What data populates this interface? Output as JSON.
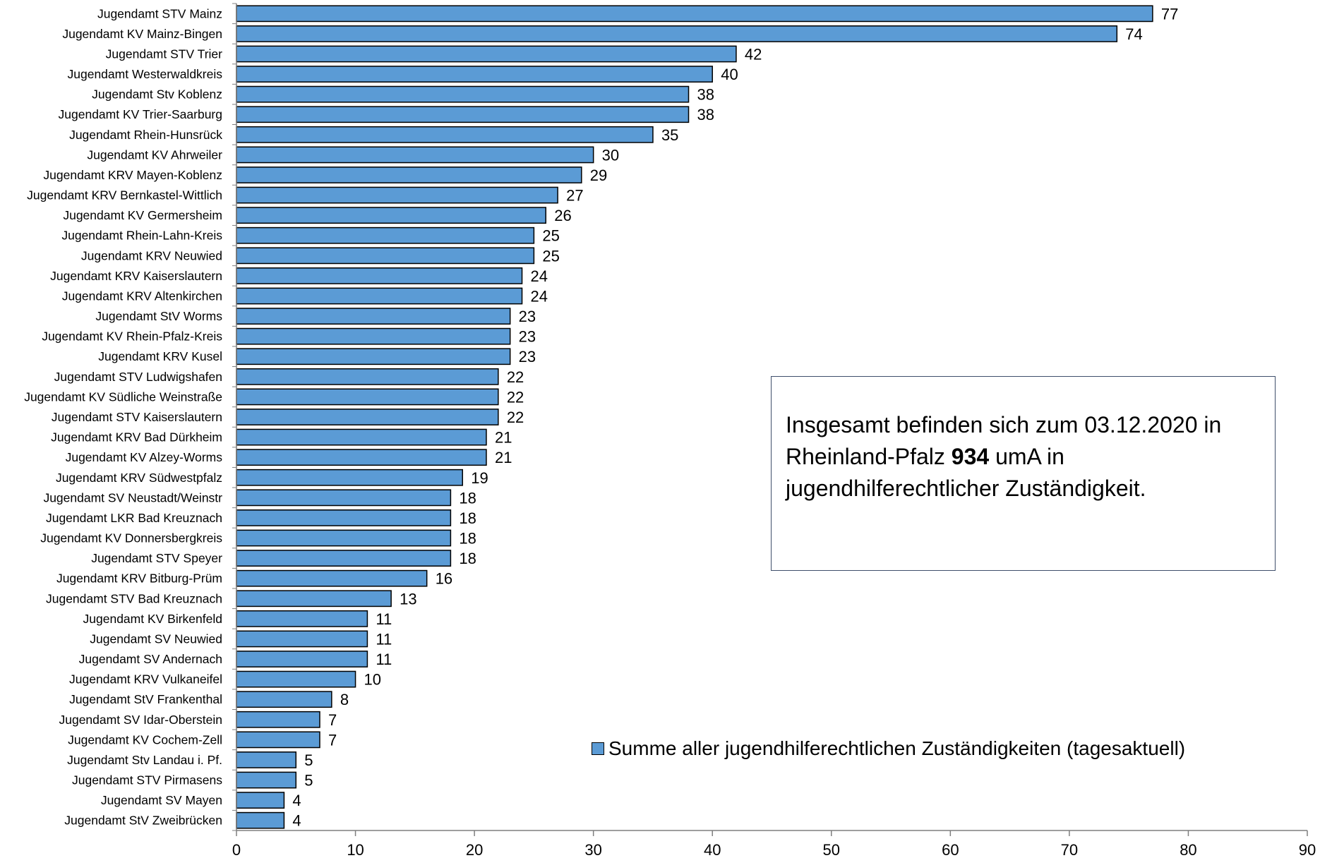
{
  "chart_data": {
    "type": "bar",
    "orientation": "horizontal",
    "categories": [
      "Jugendamt STV Mainz",
      "Jugendamt KV Mainz-Bingen",
      "Jugendamt STV Trier",
      "Jugendamt Westerwaldkreis",
      "Jugendamt Stv Koblenz",
      "Jugendamt KV Trier-Saarburg",
      "Jugendamt Rhein-Hunsrück",
      "Jugendamt KV Ahrweiler",
      "Jugendamt KRV Mayen-Koblenz",
      "Jugendamt KRV Bernkastel-Wittlich",
      "Jugendamt KV Germersheim",
      "Jugendamt Rhein-Lahn-Kreis",
      "Jugendamt KRV Neuwied",
      "Jugendamt KRV Kaiserslautern",
      "Jugendamt KRV Altenkirchen",
      "Jugendamt StV Worms",
      "Jugendamt KV Rhein-Pfalz-Kreis",
      "Jugendamt KRV Kusel",
      "Jugendamt STV Ludwigshafen",
      "Jugendamt KV Südliche Weinstraße",
      "Jugendamt STV Kaiserslautern",
      "Jugendamt KRV Bad Dürkheim",
      "Jugendamt KV Alzey-Worms",
      "Jugendamt KRV Südwestpfalz",
      "Jugendamt SV Neustadt/Weinstr",
      "Jugendamt LKR Bad Kreuznach",
      "Jugendamt KV Donnersbergkreis",
      "Jugendamt STV Speyer",
      "Jugendamt KRV Bitburg-Prüm",
      "Jugendamt STV Bad Kreuznach",
      "Jugendamt KV Birkenfeld",
      "Jugendamt SV Neuwied",
      "Jugendamt SV Andernach",
      "Jugendamt KRV Vulkaneifel",
      "Jugendamt StV Frankenthal",
      "Jugendamt SV Idar-Oberstein",
      "Jugendamt KV Cochem-Zell",
      "Jugendamt Stv Landau i. Pf.",
      "Jugendamt STV Pirmasens",
      "Jugendamt SV Mayen",
      "Jugendamt StV Zweibrücken"
    ],
    "series": [
      {
        "name": "Summe aller jugendhilferechtlichen Zuständigkeiten (tagesaktuell)",
        "values": [
          77,
          74,
          42,
          40,
          38,
          38,
          35,
          30,
          29,
          27,
          26,
          25,
          25,
          24,
          24,
          23,
          23,
          23,
          22,
          22,
          22,
          21,
          21,
          19,
          18,
          18,
          18,
          18,
          16,
          13,
          11,
          11,
          11,
          10,
          8,
          7,
          7,
          5,
          5,
          4,
          4
        ]
      }
    ],
    "xlim": [
      0,
      90
    ],
    "xticks": [
      0,
      10,
      20,
      30,
      40,
      50,
      60,
      70,
      80,
      90
    ],
    "title": "",
    "xlabel": "",
    "ylabel": "",
    "grid": false,
    "legend_position": "bottom-right",
    "bar_color": "#5b9bd5",
    "bar_edge_color": "#000000"
  },
  "annotation": {
    "text_before": "Insgesamt befinden sich zum 03.12.2020 in Rheinland-Pfalz ",
    "bold_value": "934",
    "text_after": " umA in jugendhilferechtlicher Zuständigkeit."
  }
}
